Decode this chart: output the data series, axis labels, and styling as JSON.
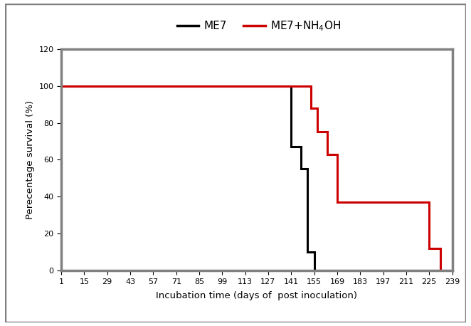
{
  "me7_x": [
    1,
    141,
    141,
    147,
    147,
    151,
    151,
    155,
    155,
    239
  ],
  "me7_y": [
    100,
    100,
    67,
    67,
    55,
    55,
    10,
    10,
    0,
    0
  ],
  "nh4oh_x": [
    1,
    153,
    153,
    157,
    157,
    163,
    163,
    169,
    169,
    197,
    197,
    225,
    225,
    232,
    232,
    239
  ],
  "nh4oh_y": [
    100,
    100,
    88,
    88,
    75,
    75,
    63,
    63,
    37,
    37,
    37,
    37,
    12,
    12,
    0,
    0
  ],
  "me7_color": "#000000",
  "nh4oh_color": "#cc0000",
  "line_width": 2.2,
  "ylabel": "Perecentage survival (%)",
  "xlabel": "Incubation time (days of  post inoculation)",
  "ylim": [
    0,
    120
  ],
  "yticks": [
    0,
    20,
    40,
    60,
    80,
    100,
    120
  ],
  "xticks": [
    1,
    15,
    29,
    43,
    57,
    71,
    85,
    99,
    113,
    127,
    141,
    155,
    169,
    183,
    197,
    211,
    225,
    239
  ],
  "legend_me7": "ME7",
  "legend_nh4oh": "ME7+NH$_4$OH",
  "background_color": "#ffffff",
  "plot_bg_color": "#ffffff",
  "outer_border_color": "#808080",
  "spine_color": "#808080",
  "label_fontsize": 9.5,
  "tick_fontsize": 8,
  "legend_fontsize": 11
}
